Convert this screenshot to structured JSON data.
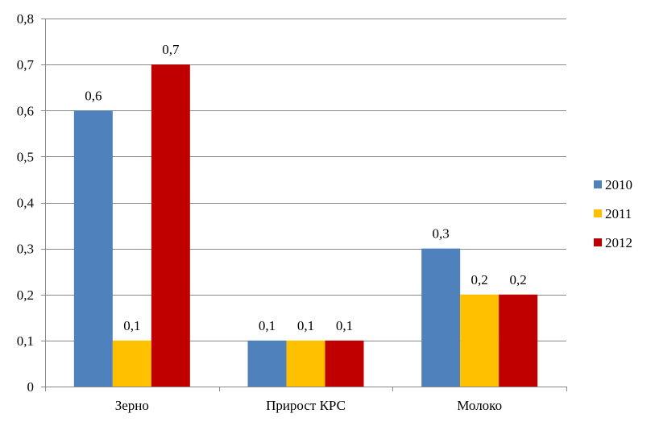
{
  "chart_data": {
    "type": "bar",
    "title": "",
    "xlabel": "",
    "ylabel": "",
    "categories": [
      "Зерно",
      "Прирост КРС",
      "Молоко"
    ],
    "series": [
      {
        "name": "2010",
        "color": "#4F81BD",
        "values": [
          0.6,
          0.1,
          0.3
        ],
        "labels": [
          "0,6",
          "0,1",
          "0,3"
        ]
      },
      {
        "name": "2011",
        "color": "#FFC000",
        "values": [
          0.1,
          0.1,
          0.2
        ],
        "labels": [
          "0,1",
          "0,1",
          "0,2"
        ]
      },
      {
        "name": "2012",
        "color": "#C00000",
        "values": [
          0.7,
          0.1,
          0.2
        ],
        "labels": [
          "0,7",
          "0,1",
          "0,2"
        ]
      }
    ],
    "ylim": [
      0,
      0.8
    ],
    "yticks": [
      0,
      0.1,
      0.2,
      0.3,
      0.4,
      0.5,
      0.6,
      0.7,
      0.8
    ],
    "ytick_labels": [
      "0",
      "0,1",
      "0,2",
      "0,3",
      "0,4",
      "0,5",
      "0,6",
      "0,7",
      "0,8"
    ],
    "grid": true,
    "legend_position": "right"
  }
}
